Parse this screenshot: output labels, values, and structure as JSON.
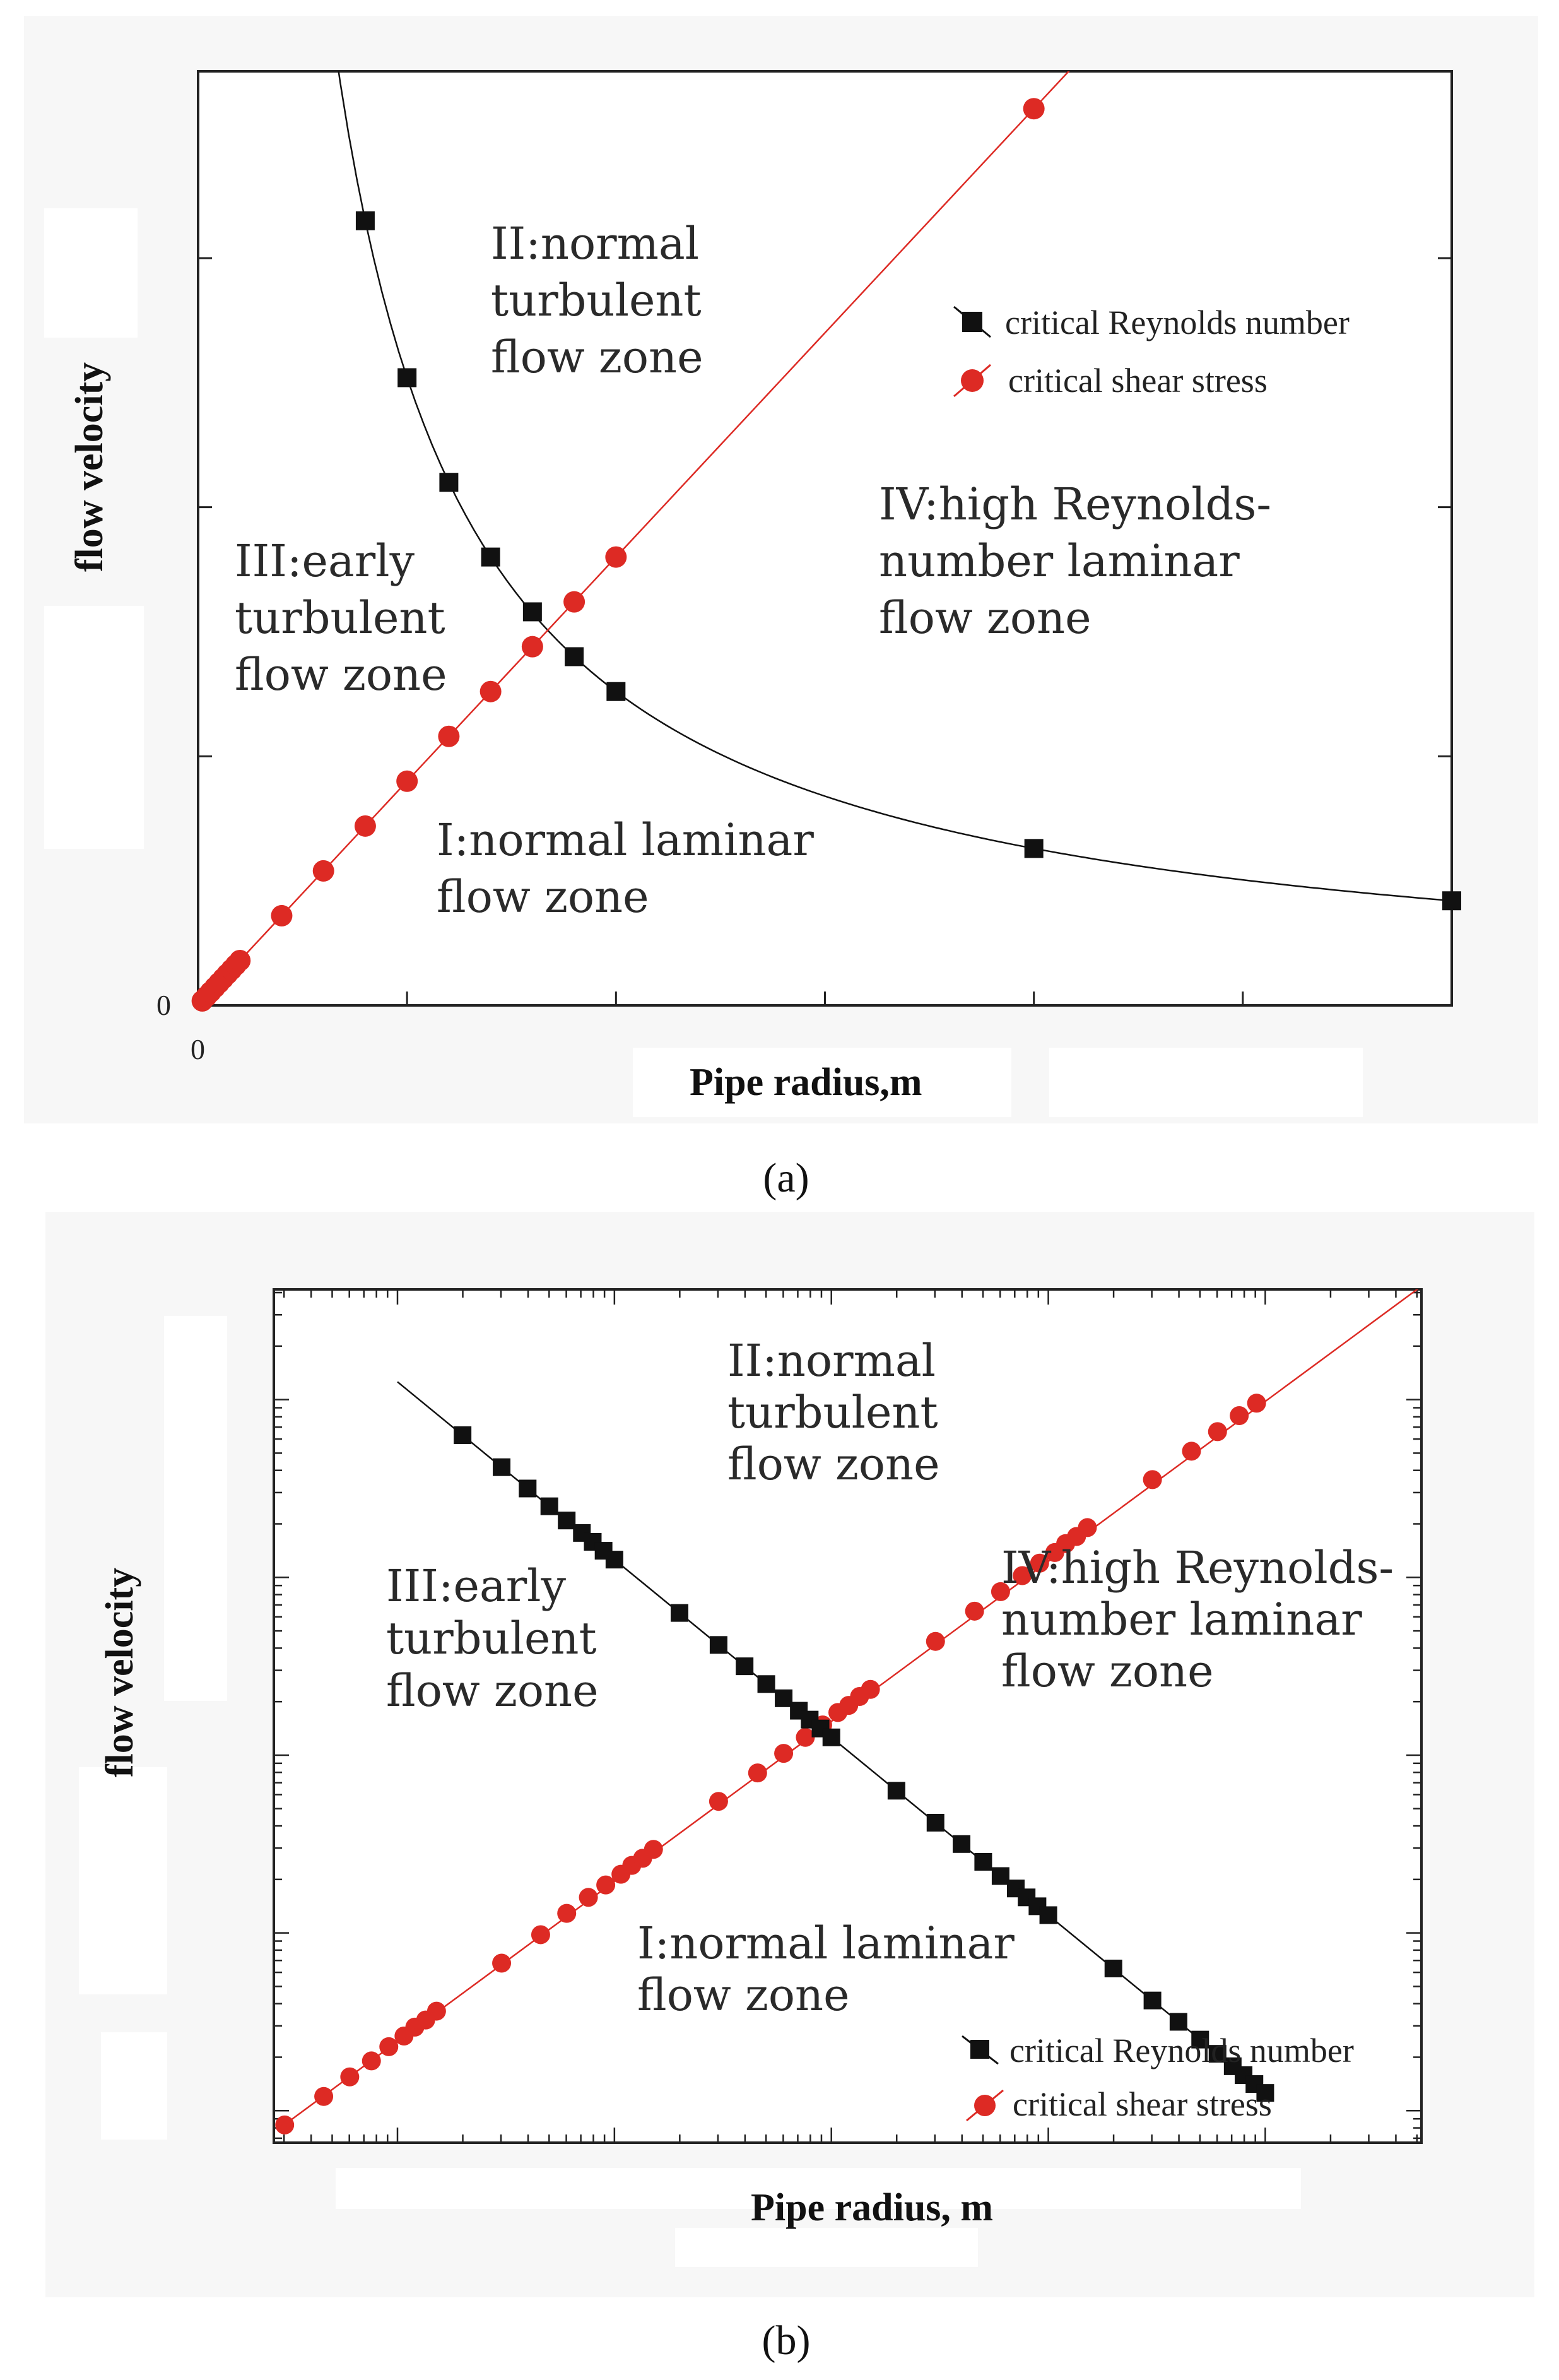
{
  "chart_data": [
    {
      "type": "scatter",
      "panel": "a",
      "caption": "(a)",
      "xlabel": "Pipe radius,m",
      "ylabel": "flow velocity",
      "x_origin_label": "0",
      "y_origin_label": "0",
      "xlim": [
        0,
        3
      ],
      "ylim": [
        0,
        3.75
      ],
      "x_ticks": [
        0.5,
        1,
        1.5,
        2,
        2.5,
        3
      ],
      "y_ticks": [
        1,
        2,
        3
      ],
      "zones": [
        {
          "lines": [
            "II:normal",
            "turbulent",
            "flow zone"
          ]
        },
        {
          "lines": [
            "III:early",
            "turbulent",
            "flow zone"
          ]
        },
        {
          "lines": [
            "IV:high Reynolds-",
            "number laminar",
            "flow zone"
          ]
        },
        {
          "lines": [
            "I:normal laminar",
            "flow zone"
          ]
        }
      ],
      "series": [
        {
          "name": "critical Reynolds number",
          "marker": "square",
          "color": "#111111",
          "x": [
            0.4,
            0.5,
            0.6,
            0.7,
            0.8,
            0.9,
            1.0,
            2.0,
            3.0
          ],
          "y": [
            3.15,
            2.52,
            2.1,
            1.8,
            1.58,
            1.4,
            1.26,
            0.63,
            0.42
          ]
        },
        {
          "name": "critical shear stress",
          "marker": "circle",
          "color": "#dd2a24",
          "x": [
            0.01,
            0.02,
            0.03,
            0.04,
            0.05,
            0.06,
            0.07,
            0.08,
            0.09,
            0.1,
            0.2,
            0.3,
            0.4,
            0.5,
            0.6,
            0.7,
            0.8,
            0.9,
            1.0,
            2.0
          ],
          "y": [
            0.018,
            0.036,
            0.054,
            0.072,
            0.09,
            0.108,
            0.126,
            0.144,
            0.162,
            0.18,
            0.36,
            0.54,
            0.72,
            0.9,
            1.08,
            1.26,
            1.44,
            1.62,
            1.8,
            3.6
          ]
        }
      ]
    },
    {
      "type": "scatter",
      "panel": "b",
      "caption": "(b)",
      "xlabel": "Pipe radius, m",
      "ylabel": "flow velocity",
      "x_scale": "log",
      "y_scale": "log",
      "xlim_log10": [
        -2.57,
        2.72
      ],
      "ylim_log10": [
        -2.18,
        2.62
      ],
      "x_major_log10": [
        -2,
        -1,
        0,
        1,
        2
      ],
      "y_major_log10": [
        -2,
        -1,
        0,
        1,
        2
      ],
      "zones": [
        {
          "lines": [
            "II:normal",
            "turbulent",
            "flow zone"
          ]
        },
        {
          "lines": [
            "III:early",
            "turbulent",
            "flow zone"
          ]
        },
        {
          "lines": [
            "IV:high Reynolds-",
            "number laminar",
            "flow zone"
          ]
        },
        {
          "lines": [
            "I:normal laminar",
            "flow zone"
          ]
        }
      ],
      "series": [
        {
          "name": "critical Reynolds number",
          "marker": "square",
          "color": "#111111",
          "x_log10": [
            -1.7,
            -1.52,
            -1.4,
            -1.3,
            -1.22,
            -1.15,
            -1.1,
            -1.05,
            -1.0,
            -0.7,
            -0.52,
            -0.4,
            -0.3,
            -0.22,
            -0.15,
            -0.1,
            -0.05,
            0.0,
            0.3,
            0.48,
            0.6,
            0.7,
            0.78,
            0.85,
            0.9,
            0.95,
            1.0,
            1.3,
            1.48,
            1.6,
            1.7,
            1.78,
            1.85,
            1.9,
            1.95,
            2.0
          ],
          "y_log10": [
            1.8,
            1.62,
            1.5,
            1.4,
            1.32,
            1.25,
            1.2,
            1.15,
            1.1,
            0.8,
            0.62,
            0.5,
            0.4,
            0.32,
            0.25,
            0.2,
            0.15,
            0.1,
            -0.2,
            -0.38,
            -0.5,
            -0.6,
            -0.68,
            -0.75,
            -0.8,
            -0.85,
            -0.9,
            -1.2,
            -1.38,
            -1.5,
            -1.6,
            -1.68,
            -1.75,
            -1.8,
            -1.85,
            -1.9
          ]
        },
        {
          "name": "critical shear stress",
          "marker": "circle",
          "color": "#dd2a24",
          "x_log10": [
            -2.52,
            -2.34,
            -2.22,
            -2.12,
            -2.04,
            -1.97,
            -1.92,
            -1.87,
            -1.82,
            -1.52,
            -1.34,
            -1.22,
            -1.12,
            -1.04,
            -0.97,
            -0.92,
            -0.87,
            -0.82,
            -0.52,
            -0.34,
            -0.22,
            -0.12,
            -0.04,
            0.03,
            0.08,
            0.13,
            0.18,
            0.48,
            0.66,
            0.78,
            0.88,
            0.96,
            1.03,
            1.08,
            1.13,
            1.18,
            1.48,
            1.66,
            1.78,
            1.88,
            1.96
          ],
          "y_log10": [
            -2.08,
            -1.92,
            -1.81,
            -1.72,
            -1.64,
            -1.58,
            -1.53,
            -1.49,
            -1.44,
            -1.17,
            -1.01,
            -0.89,
            -0.8,
            -0.73,
            -0.67,
            -0.62,
            -0.58,
            -0.53,
            -0.26,
            -0.1,
            0.01,
            0.1,
            0.17,
            0.24,
            0.28,
            0.33,
            0.37,
            0.64,
            0.81,
            0.92,
            1.01,
            1.08,
            1.14,
            1.19,
            1.23,
            1.28,
            1.55,
            1.71,
            1.82,
            1.91,
            1.98
          ]
        }
      ]
    }
  ]
}
